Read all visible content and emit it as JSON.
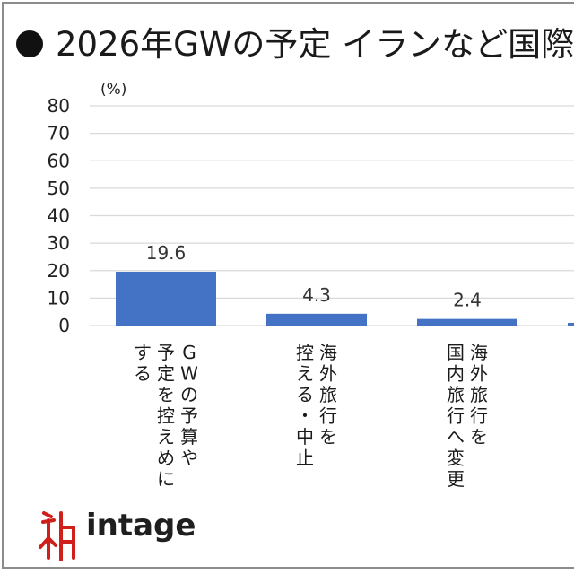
{
  "header": {
    "title": "2026年GWの予定 イランなど国際"
  },
  "brand": {
    "name": "intage",
    "logo_icon": "intage-logo-icon",
    "logo_color": "#d0201c"
  },
  "colors": {
    "bar": "#4472c4",
    "grid": "#d9d9d9",
    "text": "#222222"
  },
  "chart_data": {
    "type": "bar",
    "unit_label": "(%)",
    "categories": [
      "GWの予算や予定を控えめにする",
      "海外旅行を控える・中止",
      "海外旅行を国内旅行へ変更",
      ""
    ],
    "category_columns": [
      [
        "GWの予算や",
        "予定を控えめに",
        "する"
      ],
      [
        "海外旅行を",
        "控える・中止"
      ],
      [
        "海外旅行を",
        "国内旅行へ変更"
      ],
      []
    ],
    "values": [
      19.6,
      4.3,
      2.4,
      1.0
    ],
    "value_labels": [
      "19.6",
      "4.3",
      "2.4",
      ""
    ],
    "yticks": [
      "0",
      "10",
      "20",
      "30",
      "40",
      "50",
      "60",
      "70",
      "80"
    ],
    "ylim": [
      0,
      80
    ],
    "grid": true
  }
}
